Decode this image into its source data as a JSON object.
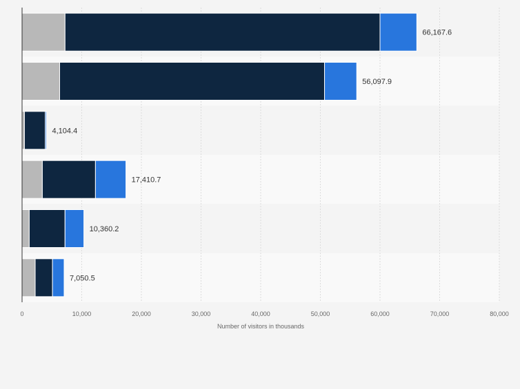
{
  "chart_data": {
    "type": "bar",
    "orientation": "horizontal",
    "stacked": true,
    "categories": [
      "",
      "",
      "",
      "",
      "",
      ""
    ],
    "series": [
      {
        "values": [
          7200,
          6300,
          400,
          3400,
          1200,
          2200
        ]
      },
      {
        "values": [
          52800,
          44400,
          3500,
          8900,
          6000,
          2900
        ]
      },
      {
        "values": [
          6167.6,
          5397.9,
          204.4,
          5110.7,
          3160.2,
          1950.5
        ]
      }
    ],
    "totals": [
      66167.6,
      56097.9,
      4104.4,
      17410.7,
      10360.2,
      7050.5
    ],
    "total_labels": [
      "66,167.6",
      "56,097.9",
      "4,104.4",
      "17,410.7",
      "10,360.2",
      "7,050.5"
    ],
    "xlim": [
      0,
      80000
    ],
    "xticks": [
      0,
      10000,
      20000,
      30000,
      40000,
      50000,
      60000,
      70000,
      80000
    ],
    "xtick_labels": [
      "0",
      "10,000",
      "20,000",
      "30,000",
      "40,000",
      "50,000",
      "60,000",
      "70,000",
      "80,000"
    ],
    "xlabel": "Number of visitors in thousands",
    "ylabel": "",
    "grid": true,
    "legend": "none",
    "colors": {
      "series": [
        "#b8b8b8",
        "#0e2640",
        "#2876dd"
      ],
      "row_band_even": "#f4f4f4",
      "row_band_odd": "#f9f9f9",
      "grid": "#dcdcdc",
      "axis": "#333333",
      "text": "#333333",
      "muted_text": "#666666",
      "bar_separator": "#ffffff"
    }
  }
}
